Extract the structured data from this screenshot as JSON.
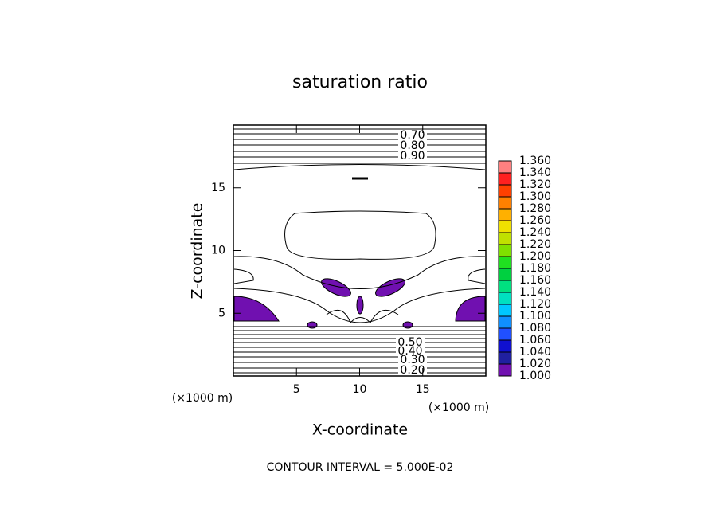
{
  "chart_data": {
    "type": "contour",
    "title": "saturation ratio",
    "xlabel": "X-coordinate",
    "ylabel": "Z-coordinate",
    "x_unit": "(×1000 m)",
    "y_unit": "(×1000 m)",
    "footer": "CONTOUR INTERVAL = 5.000E-02",
    "xlim": [
      0,
      20
    ],
    "ylim": [
      0,
      20
    ],
    "xticks": [
      5,
      10,
      15
    ],
    "yticks": [
      5,
      10,
      15
    ],
    "contour_labels": [
      {
        "value": 0.7,
        "label": "0.70"
      },
      {
        "value": 0.8,
        "label": "0.80"
      },
      {
        "value": 0.9,
        "label": "0.90"
      },
      {
        "value": 0.5,
        "label": "0.50"
      },
      {
        "value": 0.4,
        "label": "0.40"
      },
      {
        "value": 0.3,
        "label": "0.30"
      },
      {
        "value": 0.2,
        "label": "0.20"
      }
    ],
    "colorbar": {
      "lim": [
        1,
        1.36
      ],
      "ticks": [
        {
          "value": 1,
          "label": "1.000"
        },
        {
          "value": 1.02,
          "label": "1.020"
        },
        {
          "value": 1.04,
          "label": "1.040"
        },
        {
          "value": 1.06,
          "label": "1.060"
        },
        {
          "value": 1.08,
          "label": "1.080"
        },
        {
          "value": 1.1,
          "label": "1.100"
        },
        {
          "value": 1.12,
          "label": "1.120"
        },
        {
          "value": 1.14,
          "label": "1.140"
        },
        {
          "value": 1.16,
          "label": "1.160"
        },
        {
          "value": 1.18,
          "label": "1.180"
        },
        {
          "value": 1.2,
          "label": "1.200"
        },
        {
          "value": 1.22,
          "label": "1.220"
        },
        {
          "value": 1.24,
          "label": "1.240"
        },
        {
          "value": 1.26,
          "label": "1.260"
        },
        {
          "value": 1.28,
          "label": "1.280"
        },
        {
          "value": 1.3,
          "label": "1.300"
        },
        {
          "value": 1.32,
          "label": "1.320"
        },
        {
          "value": 1.34,
          "label": "1.340"
        },
        {
          "value": 1.36,
          "label": "1.360"
        }
      ],
      "colors": [
        "#7010b0",
        "#2020a0",
        "#1010d0",
        "#2050ff",
        "#1090ff",
        "#00c8ff",
        "#00e0c0",
        "#00e080",
        "#00d040",
        "#20e020",
        "#80e000",
        "#c0e000",
        "#f0e000",
        "#ffb000",
        "#ff8000",
        "#ff4000",
        "#ff2020",
        "#ff8080"
      ]
    }
  }
}
